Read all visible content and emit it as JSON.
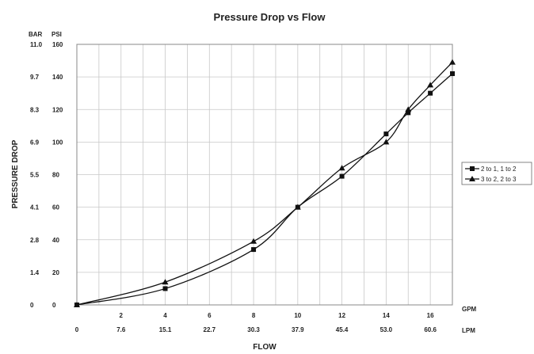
{
  "chart_data": {
    "type": "line",
    "title": "Pressure Drop vs Flow",
    "xlabel": "FLOW",
    "ylabel": "PRESSURE DROP",
    "xlim": [
      0,
      17
    ],
    "ylim": [
      0,
      160
    ],
    "grid": true,
    "legend_position": "right",
    "y_unit_bar": "BAR",
    "y_unit_psi": "PSI",
    "x_unit_gpm": "GPM",
    "x_unit_lpm": "LPM",
    "y_ticks_psi": [
      "0",
      "20",
      "40",
      "60",
      "80",
      "100",
      "120",
      "140",
      "160"
    ],
    "y_ticks_bar": [
      "0",
      "1.4",
      "2.8",
      "4.1",
      "5.5",
      "6.9",
      "8.3",
      "9.7",
      "11.0"
    ],
    "x_ticks_gpm": [
      "",
      "2",
      "4",
      "6",
      "8",
      "10",
      "12",
      "14",
      "16"
    ],
    "x_ticks_lpm": [
      "0",
      "7.6",
      "15.1",
      "22.7",
      "30.3",
      "37.9",
      "45.4",
      "53.0",
      "60.6"
    ],
    "series": [
      {
        "name": "2 to 1, 1 to 2",
        "marker": "square",
        "x": [
          0,
          4,
          8,
          10,
          12,
          14,
          15,
          16,
          17
        ],
        "y": [
          0,
          10,
          34,
          60,
          79,
          105,
          118,
          130,
          142
        ]
      },
      {
        "name": "3 to 2, 2 to 3",
        "marker": "triangle",
        "x": [
          0,
          4,
          8,
          10,
          12,
          14,
          15,
          16,
          17
        ],
        "y": [
          0,
          14,
          39,
          60,
          84,
          100,
          120,
          135,
          149
        ]
      }
    ]
  }
}
